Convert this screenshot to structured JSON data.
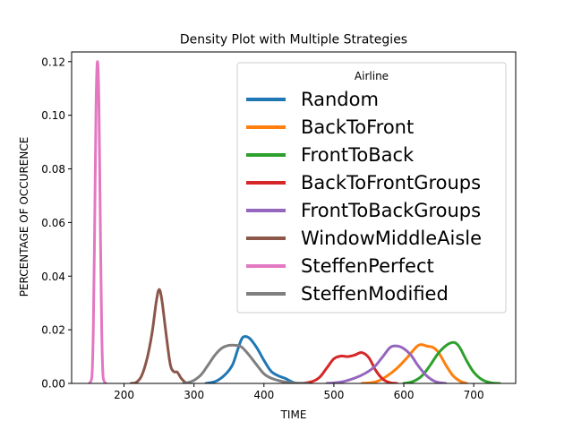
{
  "chart_data": {
    "type": "line",
    "title": "Density Plot with Multiple Strategies",
    "xlabel": "TIME",
    "ylabel": "PERCENTAGE OF OCCURENCE",
    "xlim": [
      125,
      760
    ],
    "ylim": [
      0,
      0.1236
    ],
    "xticks": [
      200,
      300,
      400,
      500,
      600,
      700
    ],
    "yticks": [
      0.0,
      0.02,
      0.04,
      0.06,
      0.08,
      0.1,
      0.12
    ],
    "ytick_labels": [
      "0.00",
      "0.02",
      "0.04",
      "0.06",
      "0.08",
      "0.10",
      "0.12"
    ],
    "grid": false,
    "legend": {
      "title": "Airline",
      "placement": "top-right"
    },
    "series": [
      {
        "name": "Random",
        "color": "#1f77b4",
        "points": [
          [
            317,
            0
          ],
          [
            332,
            0.0009
          ],
          [
            345,
            0.0034
          ],
          [
            355,
            0.0069
          ],
          [
            362,
            0.0122
          ],
          [
            368,
            0.0165
          ],
          [
            373,
            0.0175
          ],
          [
            380,
            0.0167
          ],
          [
            390,
            0.0132
          ],
          [
            400,
            0.0086
          ],
          [
            410,
            0.0046
          ],
          [
            420,
            0.0029
          ],
          [
            430,
            0.0019
          ],
          [
            440,
            0.0006
          ],
          [
            447,
            0
          ]
        ]
      },
      {
        "name": "BackToFront",
        "color": "#ff7f0e",
        "points": [
          [
            540,
            0
          ],
          [
            560,
            0.0006
          ],
          [
            575,
            0.0026
          ],
          [
            590,
            0.0056
          ],
          [
            605,
            0.0097
          ],
          [
            618,
            0.0136
          ],
          [
            625,
            0.0145
          ],
          [
            633,
            0.0139
          ],
          [
            642,
            0.0134
          ],
          [
            650,
            0.0114
          ],
          [
            660,
            0.0069
          ],
          [
            670,
            0.003
          ],
          [
            680,
            0.0009
          ],
          [
            690,
            0
          ]
        ]
      },
      {
        "name": "FrontToBack",
        "color": "#2ca02c",
        "points": [
          [
            600,
            0
          ],
          [
            612,
            0.0006
          ],
          [
            625,
            0.0026
          ],
          [
            637,
            0.0065
          ],
          [
            648,
            0.0108
          ],
          [
            658,
            0.0136
          ],
          [
            666,
            0.015
          ],
          [
            673,
            0.0152
          ],
          [
            680,
            0.0134
          ],
          [
            690,
            0.0084
          ],
          [
            700,
            0.0042
          ],
          [
            712,
            0.0014
          ],
          [
            725,
            0.0002
          ],
          [
            737,
            0
          ]
        ]
      },
      {
        "name": "BackToFrontGroups",
        "color": "#d62728",
        "points": [
          [
            455,
            0
          ],
          [
            470,
            0.0008
          ],
          [
            480,
            0.0024
          ],
          [
            490,
            0.0058
          ],
          [
            500,
            0.0092
          ],
          [
            510,
            0.0102
          ],
          [
            520,
            0.01
          ],
          [
            530,
            0.0106
          ],
          [
            540,
            0.0115
          ],
          [
            550,
            0.0096
          ],
          [
            560,
            0.0048
          ],
          [
            570,
            0.0016
          ],
          [
            580,
            0.0003
          ],
          [
            590,
            0
          ]
        ]
      },
      {
        "name": "FrontToBackGroups",
        "color": "#9467bd",
        "points": [
          [
            490,
            0
          ],
          [
            510,
            0.0005
          ],
          [
            530,
            0.002
          ],
          [
            545,
            0.0038
          ],
          [
            558,
            0.0062
          ],
          [
            570,
            0.01
          ],
          [
            580,
            0.0133
          ],
          [
            588,
            0.014
          ],
          [
            598,
            0.0133
          ],
          [
            610,
            0.0106
          ],
          [
            620,
            0.0068
          ],
          [
            632,
            0.003
          ],
          [
            645,
            0.0007
          ],
          [
            660,
            0
          ]
        ]
      },
      {
        "name": "WindowMiddleAisle",
        "color": "#8c564b",
        "points": [
          [
            210,
            0
          ],
          [
            217,
            0.0003
          ],
          [
            225,
            0.0028
          ],
          [
            233,
            0.0094
          ],
          [
            240,
            0.0188
          ],
          [
            246,
            0.0304
          ],
          [
            250,
            0.035
          ],
          [
            254,
            0.0312
          ],
          [
            260,
            0.0186
          ],
          [
            266,
            0.0072
          ],
          [
            271,
            0.0044
          ],
          [
            276,
            0.0042
          ],
          [
            282,
            0.0018
          ],
          [
            288,
            0.0003
          ],
          [
            293,
            0
          ]
        ]
      },
      {
        "name": "SteffenPerfect",
        "color": "#e377c2",
        "points": [
          [
            150,
            0
          ],
          [
            154,
            0.0025
          ],
          [
            156,
            0.02
          ],
          [
            158,
            0.06
          ],
          [
            160,
            0.105
          ],
          [
            162,
            0.12
          ],
          [
            164,
            0.105
          ],
          [
            166,
            0.06
          ],
          [
            168,
            0.02
          ],
          [
            170,
            0.0025
          ],
          [
            174,
            0
          ]
        ]
      },
      {
        "name": "SteffenModified",
        "color": "#7f7f7f",
        "points": [
          [
            285,
            0
          ],
          [
            298,
            0.0009
          ],
          [
            310,
            0.0032
          ],
          [
            320,
            0.0068
          ],
          [
            330,
            0.0106
          ],
          [
            340,
            0.0132
          ],
          [
            350,
            0.0142
          ],
          [
            360,
            0.0142
          ],
          [
            368,
            0.0136
          ],
          [
            378,
            0.0108
          ],
          [
            390,
            0.0068
          ],
          [
            400,
            0.0036
          ],
          [
            410,
            0.002
          ],
          [
            425,
            0.0008
          ],
          [
            440,
            0.0002
          ],
          [
            463,
            0
          ]
        ]
      }
    ]
  }
}
